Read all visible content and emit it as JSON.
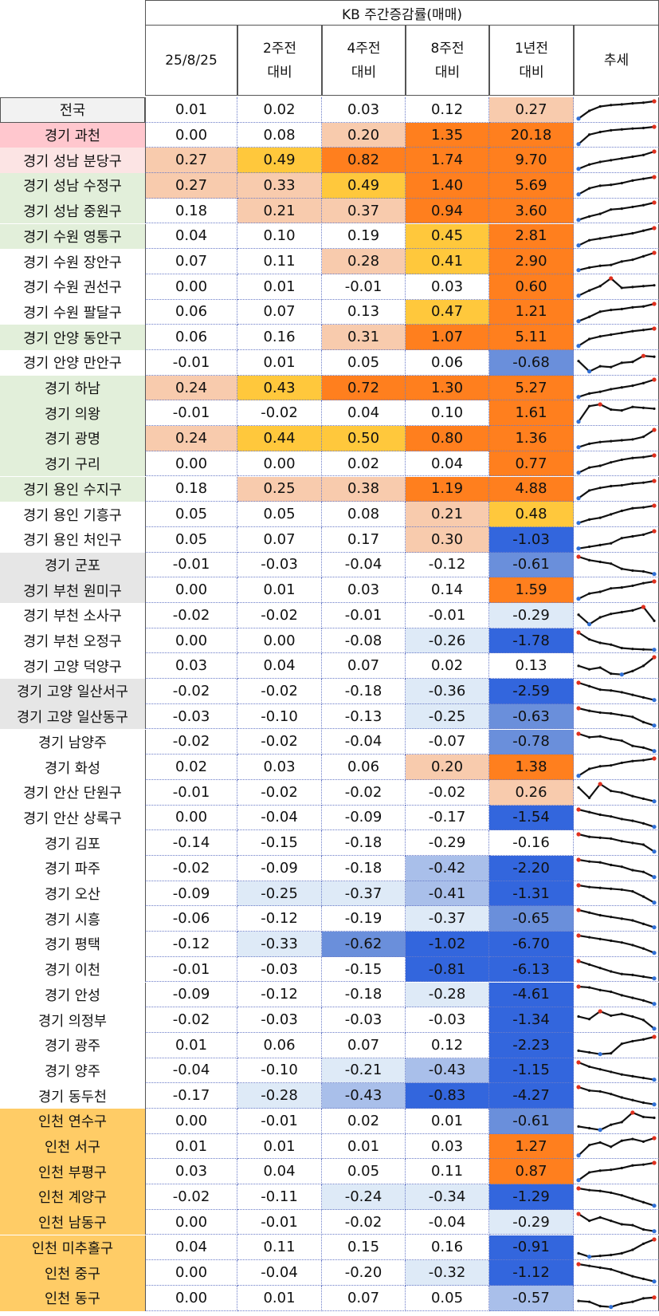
{
  "header": {
    "title": "KB 주간증감률(매매)",
    "columns": [
      "25/8/25",
      "2주전\n대비",
      "4주전\n대비",
      "8주전\n대비",
      "1년전\n대비",
      "추세"
    ]
  },
  "colors": {
    "orange_dark": "#FF7F1E",
    "yellow_orange": "#FFC83C",
    "peach": "#F8CBAD",
    "blue_dark": "#3366DD",
    "blue_mid": "#6A8FDB",
    "blue_light": "#A9BFEA",
    "blue_pale": "#DEEAF7",
    "name_pink": "#FFC7CE",
    "name_lightpink": "#FCE4E4",
    "name_green": "#E2EFDA",
    "name_gray": "#E6E6E6",
    "name_orange": "#FFCC66",
    "name_national": "#F2F2F2"
  },
  "chart_data": {
    "type": "table",
    "title": "KB 주간증감률(매매)",
    "columns": [
      "25/8/25",
      "2주전 대비",
      "4주전 대비",
      "8주전 대비",
      "1년전 대비",
      "추세"
    ],
    "rows": [
      {
        "name": "전국",
        "values": [
          0.01,
          0.02,
          0.03,
          0.12,
          0.27
        ]
      },
      {
        "name": "경기 과천",
        "values": [
          0.0,
          0.08,
          0.2,
          1.35,
          20.18
        ]
      },
      {
        "name": "경기 성남 분당구",
        "values": [
          0.27,
          0.49,
          0.82,
          1.74,
          9.7
        ]
      },
      {
        "name": "경기 성남 수정구",
        "values": [
          0.27,
          0.33,
          0.49,
          1.4,
          5.69
        ]
      },
      {
        "name": "경기 성남 중원구",
        "values": [
          0.18,
          0.21,
          0.37,
          0.94,
          3.6
        ]
      },
      {
        "name": "경기 수원 영통구",
        "values": [
          0.04,
          0.1,
          0.19,
          0.45,
          2.81
        ]
      },
      {
        "name": "경기 수원 장안구",
        "values": [
          0.07,
          0.11,
          0.28,
          0.41,
          2.9
        ]
      },
      {
        "name": "경기 수원 권선구",
        "values": [
          0.0,
          0.01,
          -0.01,
          0.03,
          0.6
        ]
      },
      {
        "name": "경기 수원 팔달구",
        "values": [
          0.06,
          0.07,
          0.13,
          0.47,
          1.21
        ]
      },
      {
        "name": "경기 안양 동안구",
        "values": [
          0.06,
          0.16,
          0.31,
          1.07,
          5.11
        ]
      },
      {
        "name": "경기 안양 만안구",
        "values": [
          -0.01,
          0.01,
          0.05,
          0.06,
          -0.68
        ]
      },
      {
        "name": "경기 하남",
        "values": [
          0.24,
          0.43,
          0.72,
          1.3,
          5.27
        ]
      },
      {
        "name": "경기 의왕",
        "values": [
          -0.01,
          -0.02,
          0.04,
          0.1,
          1.61
        ]
      },
      {
        "name": "경기 광명",
        "values": [
          0.24,
          0.44,
          0.5,
          0.8,
          1.36
        ]
      },
      {
        "name": "경기 구리",
        "values": [
          0.0,
          0.0,
          0.02,
          0.04,
          0.77
        ]
      },
      {
        "name": "경기 용인 수지구",
        "values": [
          0.18,
          0.25,
          0.38,
          1.19,
          4.88
        ]
      },
      {
        "name": "경기 용인 기흥구",
        "values": [
          0.05,
          0.05,
          0.08,
          0.21,
          0.48
        ]
      },
      {
        "name": "경기 용인 처인구",
        "values": [
          0.05,
          0.07,
          0.17,
          0.3,
          -1.03
        ]
      },
      {
        "name": "경기 군포",
        "values": [
          -0.01,
          -0.03,
          -0.04,
          -0.12,
          -0.61
        ]
      },
      {
        "name": "경기 부천 원미구",
        "values": [
          0.0,
          0.01,
          0.03,
          0.14,
          1.59
        ]
      },
      {
        "name": "경기 부천 소사구",
        "values": [
          -0.02,
          -0.02,
          -0.01,
          -0.01,
          -0.29
        ]
      },
      {
        "name": "경기 부천 오정구",
        "values": [
          0.0,
          0.0,
          -0.08,
          -0.26,
          -1.78
        ]
      },
      {
        "name": "경기 고양 덕양구",
        "values": [
          0.03,
          0.04,
          0.07,
          0.02,
          0.13
        ]
      },
      {
        "name": "경기 고양 일산서구",
        "values": [
          -0.02,
          -0.02,
          -0.18,
          -0.36,
          -2.59
        ]
      },
      {
        "name": "경기 고양 일산동구",
        "values": [
          -0.03,
          -0.1,
          -0.13,
          -0.25,
          -0.63
        ]
      },
      {
        "name": "경기 남양주",
        "values": [
          -0.02,
          -0.02,
          -0.04,
          -0.07,
          -0.78
        ]
      },
      {
        "name": "경기 화성",
        "values": [
          0.02,
          0.03,
          0.06,
          0.2,
          1.38
        ]
      },
      {
        "name": "경기 안산 단원구",
        "values": [
          -0.01,
          -0.02,
          -0.02,
          -0.02,
          0.26
        ]
      },
      {
        "name": "경기 안산 상록구",
        "values": [
          0.0,
          -0.04,
          -0.09,
          -0.17,
          -1.54
        ]
      },
      {
        "name": "경기 김포",
        "values": [
          -0.14,
          -0.15,
          -0.18,
          -0.29,
          -0.16
        ]
      },
      {
        "name": "경기 파주",
        "values": [
          -0.02,
          -0.09,
          -0.18,
          -0.42,
          -2.2
        ]
      },
      {
        "name": "경기 오산",
        "values": [
          -0.09,
          -0.25,
          -0.37,
          -0.41,
          -1.31
        ]
      },
      {
        "name": "경기 시흥",
        "values": [
          -0.06,
          -0.12,
          -0.19,
          -0.37,
          -0.65
        ]
      },
      {
        "name": "경기 평택",
        "values": [
          -0.12,
          -0.33,
          -0.62,
          -1.02,
          -6.7
        ]
      },
      {
        "name": "경기 이천",
        "values": [
          -0.01,
          -0.03,
          -0.15,
          -0.81,
          -6.13
        ]
      },
      {
        "name": "경기 안성",
        "values": [
          -0.09,
          -0.12,
          -0.18,
          -0.28,
          -4.61
        ]
      },
      {
        "name": "경기 의정부",
        "values": [
          -0.02,
          -0.03,
          -0.03,
          -0.03,
          -1.34
        ]
      },
      {
        "name": "경기 광주",
        "values": [
          0.01,
          0.06,
          0.07,
          0.12,
          -2.23
        ]
      },
      {
        "name": "경기 양주",
        "values": [
          -0.04,
          -0.1,
          -0.21,
          -0.43,
          -1.15
        ]
      },
      {
        "name": "경기 동두천",
        "values": [
          -0.17,
          -0.28,
          -0.43,
          -0.83,
          -4.27
        ]
      },
      {
        "name": "인천 연수구",
        "values": [
          0.0,
          -0.01,
          0.02,
          0.01,
          -0.61
        ]
      },
      {
        "name": "인천 서구",
        "values": [
          0.01,
          0.01,
          0.01,
          0.03,
          1.27
        ]
      },
      {
        "name": "인천 부평구",
        "values": [
          0.03,
          0.04,
          0.05,
          0.11,
          0.87
        ]
      },
      {
        "name": "인천 계양구",
        "values": [
          -0.02,
          -0.11,
          -0.24,
          -0.34,
          -1.29
        ]
      },
      {
        "name": "인천 남동구",
        "values": [
          0.0,
          -0.01,
          -0.02,
          -0.04,
          -0.29
        ]
      },
      {
        "name": "인천 미추홀구",
        "values": [
          0.04,
          0.11,
          0.15,
          0.16,
          -0.91
        ]
      },
      {
        "name": "인천 중구",
        "values": [
          0.0,
          -0.04,
          -0.2,
          -0.32,
          -1.12
        ]
      },
      {
        "name": "인천 동구",
        "values": [
          0.0,
          0.01,
          0.07,
          0.05,
          -0.57
        ]
      }
    ]
  },
  "display": {
    "fills": [
      [
        "",
        "",
        "",
        "",
        "peach"
      ],
      [
        "",
        "",
        "peach",
        "orange_dark",
        "orange_dark"
      ],
      [
        "peach",
        "yellow_orange",
        "orange_dark",
        "orange_dark",
        "orange_dark"
      ],
      [
        "peach",
        "peach",
        "yellow_orange",
        "orange_dark",
        "orange_dark"
      ],
      [
        "",
        "peach",
        "peach",
        "orange_dark",
        "orange_dark"
      ],
      [
        "",
        "",
        "",
        "yellow_orange",
        "orange_dark"
      ],
      [
        "",
        "",
        "peach",
        "yellow_orange",
        "orange_dark"
      ],
      [
        "",
        "",
        "",
        "",
        "orange_dark"
      ],
      [
        "",
        "",
        "",
        "yellow_orange",
        "orange_dark"
      ],
      [
        "",
        "",
        "peach",
        "orange_dark",
        "orange_dark"
      ],
      [
        "",
        "",
        "",
        "",
        "blue_mid"
      ],
      [
        "peach",
        "yellow_orange",
        "orange_dark",
        "orange_dark",
        "orange_dark"
      ],
      [
        "",
        "",
        "",
        "",
        "orange_dark"
      ],
      [
        "peach",
        "yellow_orange",
        "yellow_orange",
        "orange_dark",
        "orange_dark"
      ],
      [
        "",
        "",
        "",
        "",
        "orange_dark"
      ],
      [
        "",
        "peach",
        "peach",
        "orange_dark",
        "orange_dark"
      ],
      [
        "",
        "",
        "",
        "peach",
        "yellow_orange"
      ],
      [
        "",
        "",
        "",
        "peach",
        "blue_dark"
      ],
      [
        "",
        "",
        "",
        "",
        "blue_mid"
      ],
      [
        "",
        "",
        "",
        "",
        "orange_dark"
      ],
      [
        "",
        "",
        "",
        "",
        "blue_pale"
      ],
      [
        "",
        "",
        "",
        "blue_pale",
        "blue_dark"
      ],
      [
        "",
        "",
        "",
        "",
        ""
      ],
      [
        "",
        "",
        "",
        "blue_pale",
        "blue_dark"
      ],
      [
        "",
        "",
        "",
        "blue_pale",
        "blue_mid"
      ],
      [
        "",
        "",
        "",
        "",
        "blue_mid"
      ],
      [
        "",
        "",
        "",
        "peach",
        "orange_dark"
      ],
      [
        "",
        "",
        "",
        "",
        "peach"
      ],
      [
        "",
        "",
        "",
        "",
        "blue_dark"
      ],
      [
        "",
        "",
        "",
        "",
        ""
      ],
      [
        "",
        "",
        "",
        "blue_light",
        "blue_dark"
      ],
      [
        "",
        "blue_pale",
        "blue_pale",
        "blue_light",
        "blue_dark"
      ],
      [
        "",
        "",
        "",
        "blue_pale",
        "blue_mid"
      ],
      [
        "",
        "blue_pale",
        "blue_mid",
        "blue_dark",
        "blue_dark"
      ],
      [
        "",
        "",
        "",
        "blue_dark",
        "blue_dark"
      ],
      [
        "",
        "",
        "",
        "blue_pale",
        "blue_dark"
      ],
      [
        "",
        "",
        "",
        "",
        "blue_dark"
      ],
      [
        "",
        "",
        "",
        "",
        "blue_dark"
      ],
      [
        "",
        "",
        "blue_pale",
        "blue_light",
        "blue_dark"
      ],
      [
        "",
        "blue_pale",
        "blue_light",
        "blue_dark",
        "blue_dark"
      ],
      [
        "",
        "",
        "",
        "",
        "blue_mid"
      ],
      [
        "",
        "",
        "",
        "",
        "orange_dark"
      ],
      [
        "",
        "",
        "",
        "",
        "orange_dark"
      ],
      [
        "",
        "",
        "blue_pale",
        "blue_pale",
        "blue_dark"
      ],
      [
        "",
        "",
        "",
        "",
        "blue_pale"
      ],
      [
        "",
        "",
        "",
        "",
        "blue_dark"
      ],
      [
        "",
        "",
        "",
        "blue_pale",
        "blue_dark"
      ],
      [
        "",
        "",
        "",
        "",
        "blue_light"
      ]
    ],
    "name_fills": [
      "name_national",
      "name_pink",
      "name_lightpink",
      "name_green",
      "name_green",
      "name_green",
      "",
      "",
      "",
      "name_green",
      "",
      "name_green",
      "name_green",
      "name_green",
      "name_green",
      "name_green",
      "",
      "",
      "name_gray",
      "name_gray",
      "",
      "",
      "",
      "name_gray",
      "name_gray",
      "",
      "",
      "",
      "",
      "",
      "",
      "",
      "",
      "",
      "",
      "",
      "",
      "",
      "",
      "",
      "name_orange",
      "name_orange",
      "name_orange",
      "name_orange",
      "name_orange",
      "name_orange",
      "name_orange",
      "name_orange"
    ],
    "trends": [
      [
        0,
        0.45,
        0.7,
        0.78,
        0.82,
        0.88,
        0.92,
        1
      ],
      [
        0,
        0.55,
        0.7,
        0.8,
        0.85,
        0.9,
        0.93,
        1
      ],
      [
        0,
        0.25,
        0.4,
        0.5,
        0.6,
        0.7,
        0.8,
        1
      ],
      [
        0,
        0.35,
        0.5,
        0.55,
        0.65,
        0.8,
        0.9,
        1
      ],
      [
        0,
        0.2,
        0.35,
        0.6,
        0.65,
        0.75,
        0.85,
        1
      ],
      [
        0,
        0.3,
        0.4,
        0.5,
        0.6,
        0.7,
        0.85,
        1
      ],
      [
        0,
        0.15,
        0.25,
        0.3,
        0.5,
        0.6,
        0.8,
        1
      ],
      [
        0,
        0.3,
        0.55,
        1,
        0.45,
        0.5,
        0.55,
        0.6
      ],
      [
        0,
        0.25,
        0.55,
        0.65,
        0.7,
        0.8,
        0.85,
        1
      ],
      [
        0,
        0.4,
        0.55,
        0.65,
        0.75,
        0.85,
        0.92,
        1
      ],
      [
        0.6,
        0,
        0.3,
        0.25,
        0.5,
        0.55,
        0.9,
        0.85
      ],
      [
        0,
        0.2,
        0.3,
        0.45,
        0.55,
        0.65,
        0.8,
        1
      ],
      [
        0,
        0.9,
        1,
        0.7,
        0.65,
        0.85,
        0.8,
        0.75
      ],
      [
        0,
        0.2,
        0.3,
        0.35,
        0.4,
        0.45,
        0.6,
        1
      ],
      [
        0,
        0.3,
        0.4,
        0.6,
        0.75,
        0.85,
        0.9,
        1
      ],
      [
        0,
        0.45,
        0.6,
        0.7,
        0.75,
        0.85,
        0.9,
        1
      ],
      [
        0,
        0.2,
        0.3,
        0.5,
        0.7,
        0.85,
        0.9,
        1
      ],
      [
        0,
        0.1,
        0.2,
        0.3,
        0.6,
        0.7,
        0.8,
        1
      ],
      [
        1,
        0.8,
        0.7,
        0.6,
        0.3,
        0.2,
        0.15,
        0
      ],
      [
        0,
        0.3,
        0.4,
        0.6,
        0.65,
        0.75,
        0.9,
        1
      ],
      [
        0.55,
        0,
        0.4,
        0.6,
        0.7,
        0.8,
        1,
        0.2
      ],
      [
        1,
        0.6,
        0.4,
        0.3,
        0.1,
        0.05,
        0.02,
        0
      ],
      [
        0.5,
        0.3,
        0.4,
        0.05,
        0,
        0.2,
        0.5,
        1
      ],
      [
        1,
        0.8,
        0.6,
        0.55,
        0.45,
        0.3,
        0.15,
        0
      ],
      [
        1,
        0.85,
        0.75,
        0.7,
        0.6,
        0.5,
        0.2,
        0
      ],
      [
        1,
        0.8,
        0.85,
        0.7,
        0.6,
        0.3,
        0.2,
        0
      ],
      [
        0,
        0.4,
        0.55,
        0.6,
        0.75,
        0.85,
        0.9,
        1
      ],
      [
        0.8,
        0.2,
        1,
        0.6,
        0.5,
        0.3,
        0.15,
        0
      ],
      [
        1,
        0.85,
        0.7,
        0.6,
        0.45,
        0.35,
        0.2,
        0
      ],
      [
        1,
        0.85,
        0.8,
        0.75,
        0.6,
        0.5,
        0.4,
        0
      ],
      [
        1,
        0.9,
        0.85,
        0.7,
        0.6,
        0.4,
        0.3,
        0
      ],
      [
        1,
        0.9,
        0.85,
        0.8,
        0.75,
        0.65,
        0.35,
        0
      ],
      [
        1,
        0.85,
        0.7,
        0.6,
        0.5,
        0.4,
        0.2,
        0
      ],
      [
        1,
        0.9,
        0.8,
        0.7,
        0.6,
        0.45,
        0.25,
        0
      ],
      [
        1,
        0.8,
        0.6,
        0.4,
        0.25,
        0.2,
        0.1,
        0
      ],
      [
        1,
        0.95,
        0.8,
        0.7,
        0.5,
        0.35,
        0.2,
        0
      ],
      [
        0.7,
        0.55,
        1,
        0.75,
        0.85,
        0.7,
        0.5,
        0
      ],
      [
        0.2,
        0.1,
        0,
        0.05,
        0.6,
        0.75,
        0.85,
        1
      ],
      [
        1,
        0.75,
        0.6,
        0.45,
        0.3,
        0.2,
        0.1,
        0
      ],
      [
        1,
        0.8,
        0.75,
        0.6,
        0.4,
        0.25,
        0.1,
        0
      ],
      [
        0.2,
        0.1,
        0,
        0.3,
        0.45,
        1,
        0.75,
        0.7
      ],
      [
        0,
        0.6,
        0.75,
        0.5,
        0.85,
        0.95,
        0.8,
        1
      ],
      [
        0,
        0.45,
        0.55,
        0.6,
        0.7,
        0.85,
        0.9,
        1
      ],
      [
        1,
        0.9,
        0.85,
        0.75,
        0.6,
        0.4,
        0.2,
        0
      ],
      [
        1,
        0.6,
        0.8,
        0.6,
        0.4,
        0.35,
        0.1,
        0
      ],
      [
        0.2,
        0,
        0.05,
        0.1,
        0.2,
        0.4,
        0.75,
        1
      ],
      [
        1,
        0.9,
        0.8,
        0.7,
        0.5,
        0.3,
        0.15,
        0
      ],
      [
        0.35,
        0.3,
        0.05,
        0,
        0.2,
        0.3,
        0.5,
        0.55
      ]
    ]
  }
}
